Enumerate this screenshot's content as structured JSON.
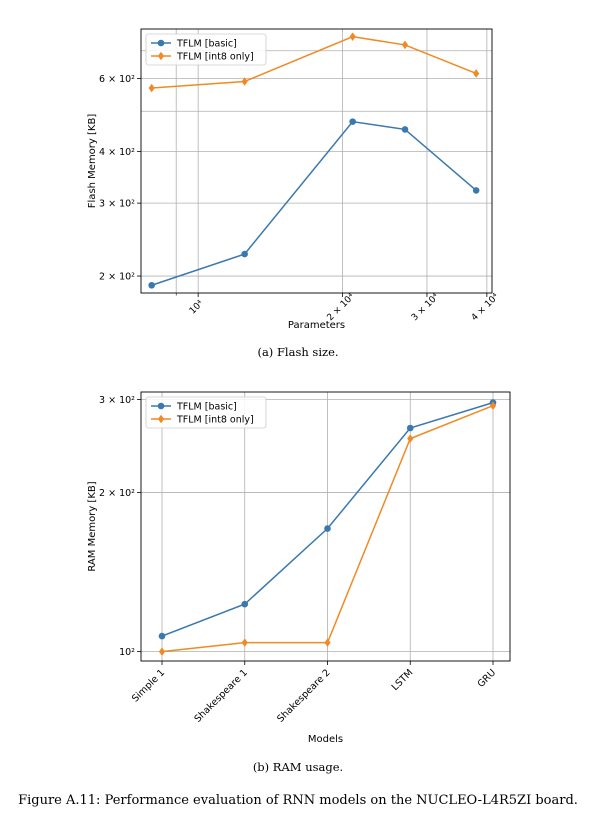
{
  "chart_data": [
    {
      "type": "line",
      "xscale": "log",
      "yscale": "log",
      "xlabel": "Parameters",
      "ylabel": "Flash Memory [KB]",
      "caption": "(a) Flash size.",
      "xlim": [
        7600,
        41000
      ],
      "ylim": [
        182,
        790
      ],
      "x_ticks": [
        {
          "value": 10000,
          "label": "10⁴"
        },
        {
          "value": 20000,
          "label": "2 × 10⁴"
        },
        {
          "value": 30000,
          "label": "3 × 10⁴"
        },
        {
          "value": 40000,
          "label": "4 × 10⁴"
        }
      ],
      "x_minor_grid": [
        9000
      ],
      "y_ticks": [
        {
          "value": 200,
          "label": "2 × 10²"
        },
        {
          "value": 300,
          "label": "3 × 10²"
        },
        {
          "value": 400,
          "label": "4 × 10²"
        },
        {
          "value": 600,
          "label": "6 × 10²"
        }
      ],
      "y_minor_grid": [
        500,
        700
      ],
      "grid": true,
      "legend": {
        "location": "top-left"
      },
      "series": [
        {
          "name": "TFLM [basic]",
          "color": "#3a78b0",
          "marker": "circle",
          "x": [
            8000,
            12500,
            21000,
            27000,
            38000
          ],
          "y": [
            190,
            226,
            472,
            452,
            322
          ]
        },
        {
          "name": "TFLM [int8 only]",
          "color": "#f08a24",
          "marker": "diamond",
          "x": [
            8000,
            12500,
            21000,
            27000,
            38000
          ],
          "y": [
            569,
            590,
            757,
            723,
            617
          ]
        }
      ]
    },
    {
      "type": "line",
      "yscale": "log",
      "xlabel": "Models",
      "ylabel": "RAM Memory [KB]",
      "caption": "(b) RAM usage.",
      "categories": [
        "Simple 1",
        "Shakespeare 1",
        "Shakespeare 2",
        "LSTM",
        "GRU"
      ],
      "ylim": [
        96,
        310
      ],
      "y_ticks": [
        {
          "value": 100,
          "label": "10²"
        },
        {
          "value": 200,
          "label": "2 × 10²"
        },
        {
          "value": 300,
          "label": "3 × 10²"
        }
      ],
      "grid": true,
      "legend": {
        "location": "top-left"
      },
      "series": [
        {
          "name": "TFLM [basic]",
          "color": "#3a78b0",
          "marker": "circle",
          "values": [
            107,
            123,
            171,
            265,
            296
          ]
        },
        {
          "name": "TFLM [int8 only]",
          "color": "#f08a24",
          "marker": "diamond",
          "values": [
            100,
            104,
            104,
            253,
            292
          ]
        }
      ]
    }
  ],
  "figure_caption": "Figure A.11: Performance evaluation of RNN models on the NUCLEO-L4R5ZI board."
}
